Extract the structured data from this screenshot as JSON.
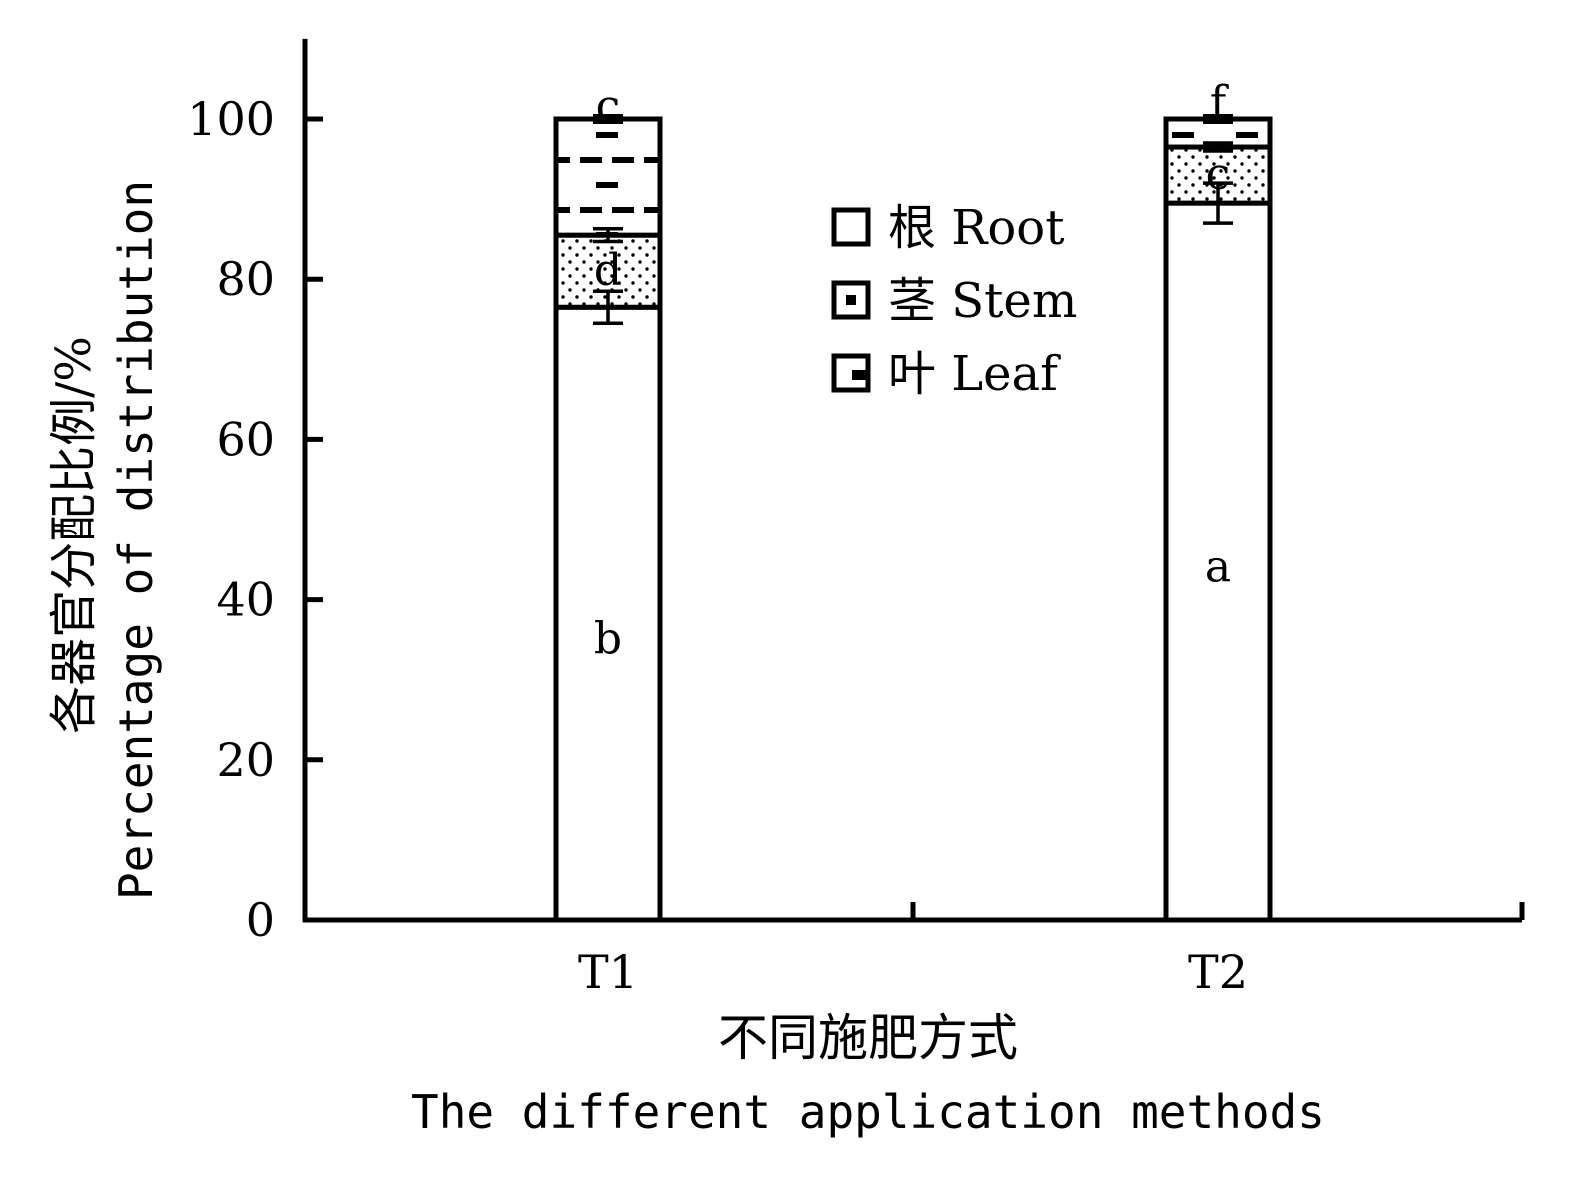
{
  "chart_data": {
    "type": "bar",
    "stacked": true,
    "categories": [
      "T1",
      "T2"
    ],
    "series": [
      {
        "name": "根 Root",
        "values": [
          76.5,
          89.5
        ],
        "errors": [
          2.0,
          2.5
        ],
        "pattern": "empty"
      },
      {
        "name": "茎 Stem",
        "values": [
          9.0,
          7.0
        ],
        "errors": [
          0.8,
          0.5
        ],
        "pattern": "dots"
      },
      {
        "name": "叶 Leaf",
        "values": [
          14.5,
          3.5
        ],
        "errors": [
          0.4,
          0.4
        ],
        "pattern": "dashes"
      }
    ],
    "letters": [
      {
        "category": "T1",
        "series": "根 Root",
        "label": "b"
      },
      {
        "category": "T1",
        "series": "茎 Stem",
        "label": "d"
      },
      {
        "category": "T1",
        "series": "叶 Leaf",
        "label": "c"
      },
      {
        "category": "T2",
        "series": "根 Root",
        "label": "a"
      },
      {
        "category": "T2",
        "series": "茎 Stem",
        "label": "c"
      },
      {
        "category": "T2",
        "series": "叶 Leaf",
        "label": "f"
      }
    ],
    "ylabel_cn": "各器官分配比例/%",
    "ylabel_en": "Percentage of distribution",
    "xlabel_cn": "不同施肥方式",
    "xlabel_en": "The different application methods",
    "ylim": [
      0,
      110
    ],
    "yticks": [
      0,
      20,
      40,
      60,
      80,
      100
    ],
    "grid": false,
    "legend_position": "upper-center"
  }
}
